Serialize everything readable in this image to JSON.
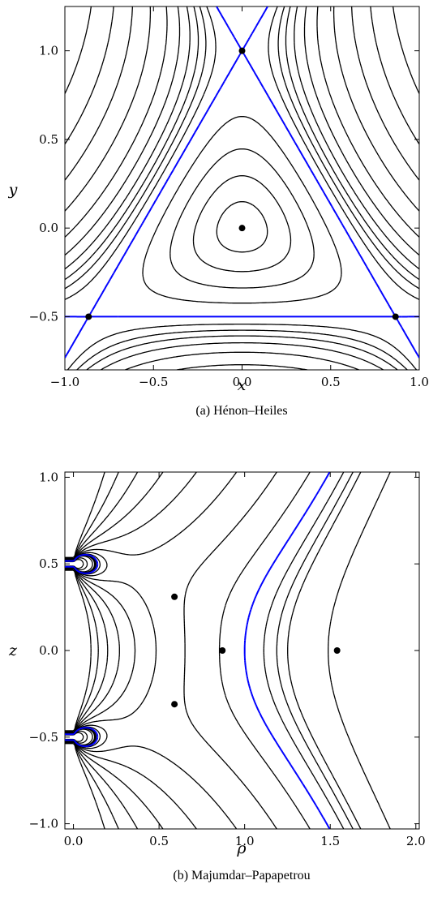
{
  "chart_data": [
    {
      "type": "contour",
      "caption": "(a) Hénon–Heiles",
      "xlabel": "x",
      "ylabel": "y",
      "xlim": [
        -1.0,
        1.0
      ],
      "ylim": [
        -0.8,
        1.25
      ],
      "xticks": [
        -1.0,
        -0.5,
        0.0,
        0.5,
        1.0
      ],
      "xtick_labels": [
        "−1.0",
        "−0.5",
        "0.0",
        "0.5",
        "1.0"
      ],
      "yticks": [
        -0.5,
        0.0,
        0.5,
        1.0
      ],
      "ytick_labels": [
        "−0.5",
        "0.0",
        "0.5",
        "1.0"
      ],
      "contour_color": "#000000",
      "separatrix_color": "#0000ff",
      "critical_points": [
        {
          "x": 0.0,
          "y": 0.0
        },
        {
          "x": 0.0,
          "y": 1.0
        },
        {
          "x": -0.866,
          "y": -0.5
        },
        {
          "x": 0.866,
          "y": -0.5
        }
      ]
    },
    {
      "type": "contour",
      "caption": "(b) Majumdar–Papapetrou",
      "xlabel": "ρ",
      "ylabel": "z",
      "xlim": [
        -0.05,
        2.02
      ],
      "ylim": [
        -1.03,
        1.03
      ],
      "xticks": [
        0.0,
        0.5,
        1.0,
        1.5,
        2.0
      ],
      "xtick_labels": [
        "0.0",
        "0.5",
        "1.0",
        "1.5",
        "2.0"
      ],
      "yticks": [
        -1.0,
        -0.5,
        0.0,
        0.5,
        1.0
      ],
      "ytick_labels": [
        "−1.0",
        "−0.5",
        "0.0",
        "0.5",
        "1.0"
      ],
      "contour_color": "#000000",
      "separatrix_color": "#0000ff",
      "critical_points": [
        {
          "x": 0.87,
          "y": 0.0
        },
        {
          "x": 1.54,
          "y": 0.0
        },
        {
          "x": 0.59,
          "y": 0.31
        },
        {
          "x": 0.59,
          "y": -0.31
        }
      ]
    }
  ]
}
